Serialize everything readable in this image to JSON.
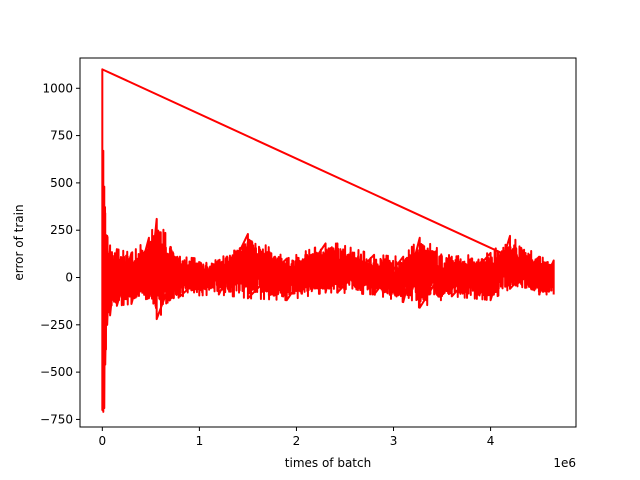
{
  "chart_data": {
    "type": "line",
    "title": "",
    "xlabel": "times of batch",
    "ylabel": "error of train",
    "x_offset_label": "1e6",
    "xlim": [
      -0.23,
      4.88
    ],
    "ylim": [
      -790,
      1160
    ],
    "x_ticks": [
      0,
      1,
      2,
      3,
      4
    ],
    "y_ticks": [
      -750,
      -500,
      -250,
      0,
      250,
      500,
      750,
      1000
    ],
    "grid": false,
    "legend": "none",
    "series": [
      {
        "color": "#ff0000",
        "x_range": [
          0,
          4.65
        ],
        "envelope_note_values": "upper/lower y-extent of the signal at each x (data units)",
        "envelope": [
          {
            "x": 0.0,
            "upper": 1100,
            "lower": -700
          },
          {
            "x": 0.01,
            "upper": 670,
            "lower": -710
          },
          {
            "x": 0.02,
            "upper": 480,
            "lower": -690
          },
          {
            "x": 0.03,
            "upper": 340,
            "lower": -460
          },
          {
            "x": 0.05,
            "upper": 220,
            "lower": -250
          },
          {
            "x": 0.08,
            "upper": 170,
            "lower": -200
          },
          {
            "x": 0.15,
            "upper": 150,
            "lower": -150
          },
          {
            "x": 0.3,
            "upper": 130,
            "lower": -140
          },
          {
            "x": 0.48,
            "upper": 210,
            "lower": -110
          },
          {
            "x": 0.56,
            "upper": 310,
            "lower": -220
          },
          {
            "x": 0.8,
            "upper": 110,
            "lower": -100
          },
          {
            "x": 1.2,
            "upper": 90,
            "lower": -90
          },
          {
            "x": 1.5,
            "upper": 230,
            "lower": -110
          },
          {
            "x": 1.9,
            "upper": 100,
            "lower": -120
          },
          {
            "x": 2.3,
            "upper": 180,
            "lower": -80
          },
          {
            "x": 2.42,
            "upper": 180,
            "lower": -80
          },
          {
            "x": 2.8,
            "upper": 120,
            "lower": -90
          },
          {
            "x": 3.1,
            "upper": 110,
            "lower": -130
          },
          {
            "x": 3.27,
            "upper": 210,
            "lower": -160
          },
          {
            "x": 3.6,
            "upper": 110,
            "lower": -100
          },
          {
            "x": 4.0,
            "upper": 130,
            "lower": -120
          },
          {
            "x": 4.2,
            "upper": 220,
            "lower": -60
          },
          {
            "x": 4.5,
            "upper": 110,
            "lower": -90
          },
          {
            "x": 4.65,
            "upper": 90,
            "lower": -90
          }
        ]
      }
    ]
  }
}
